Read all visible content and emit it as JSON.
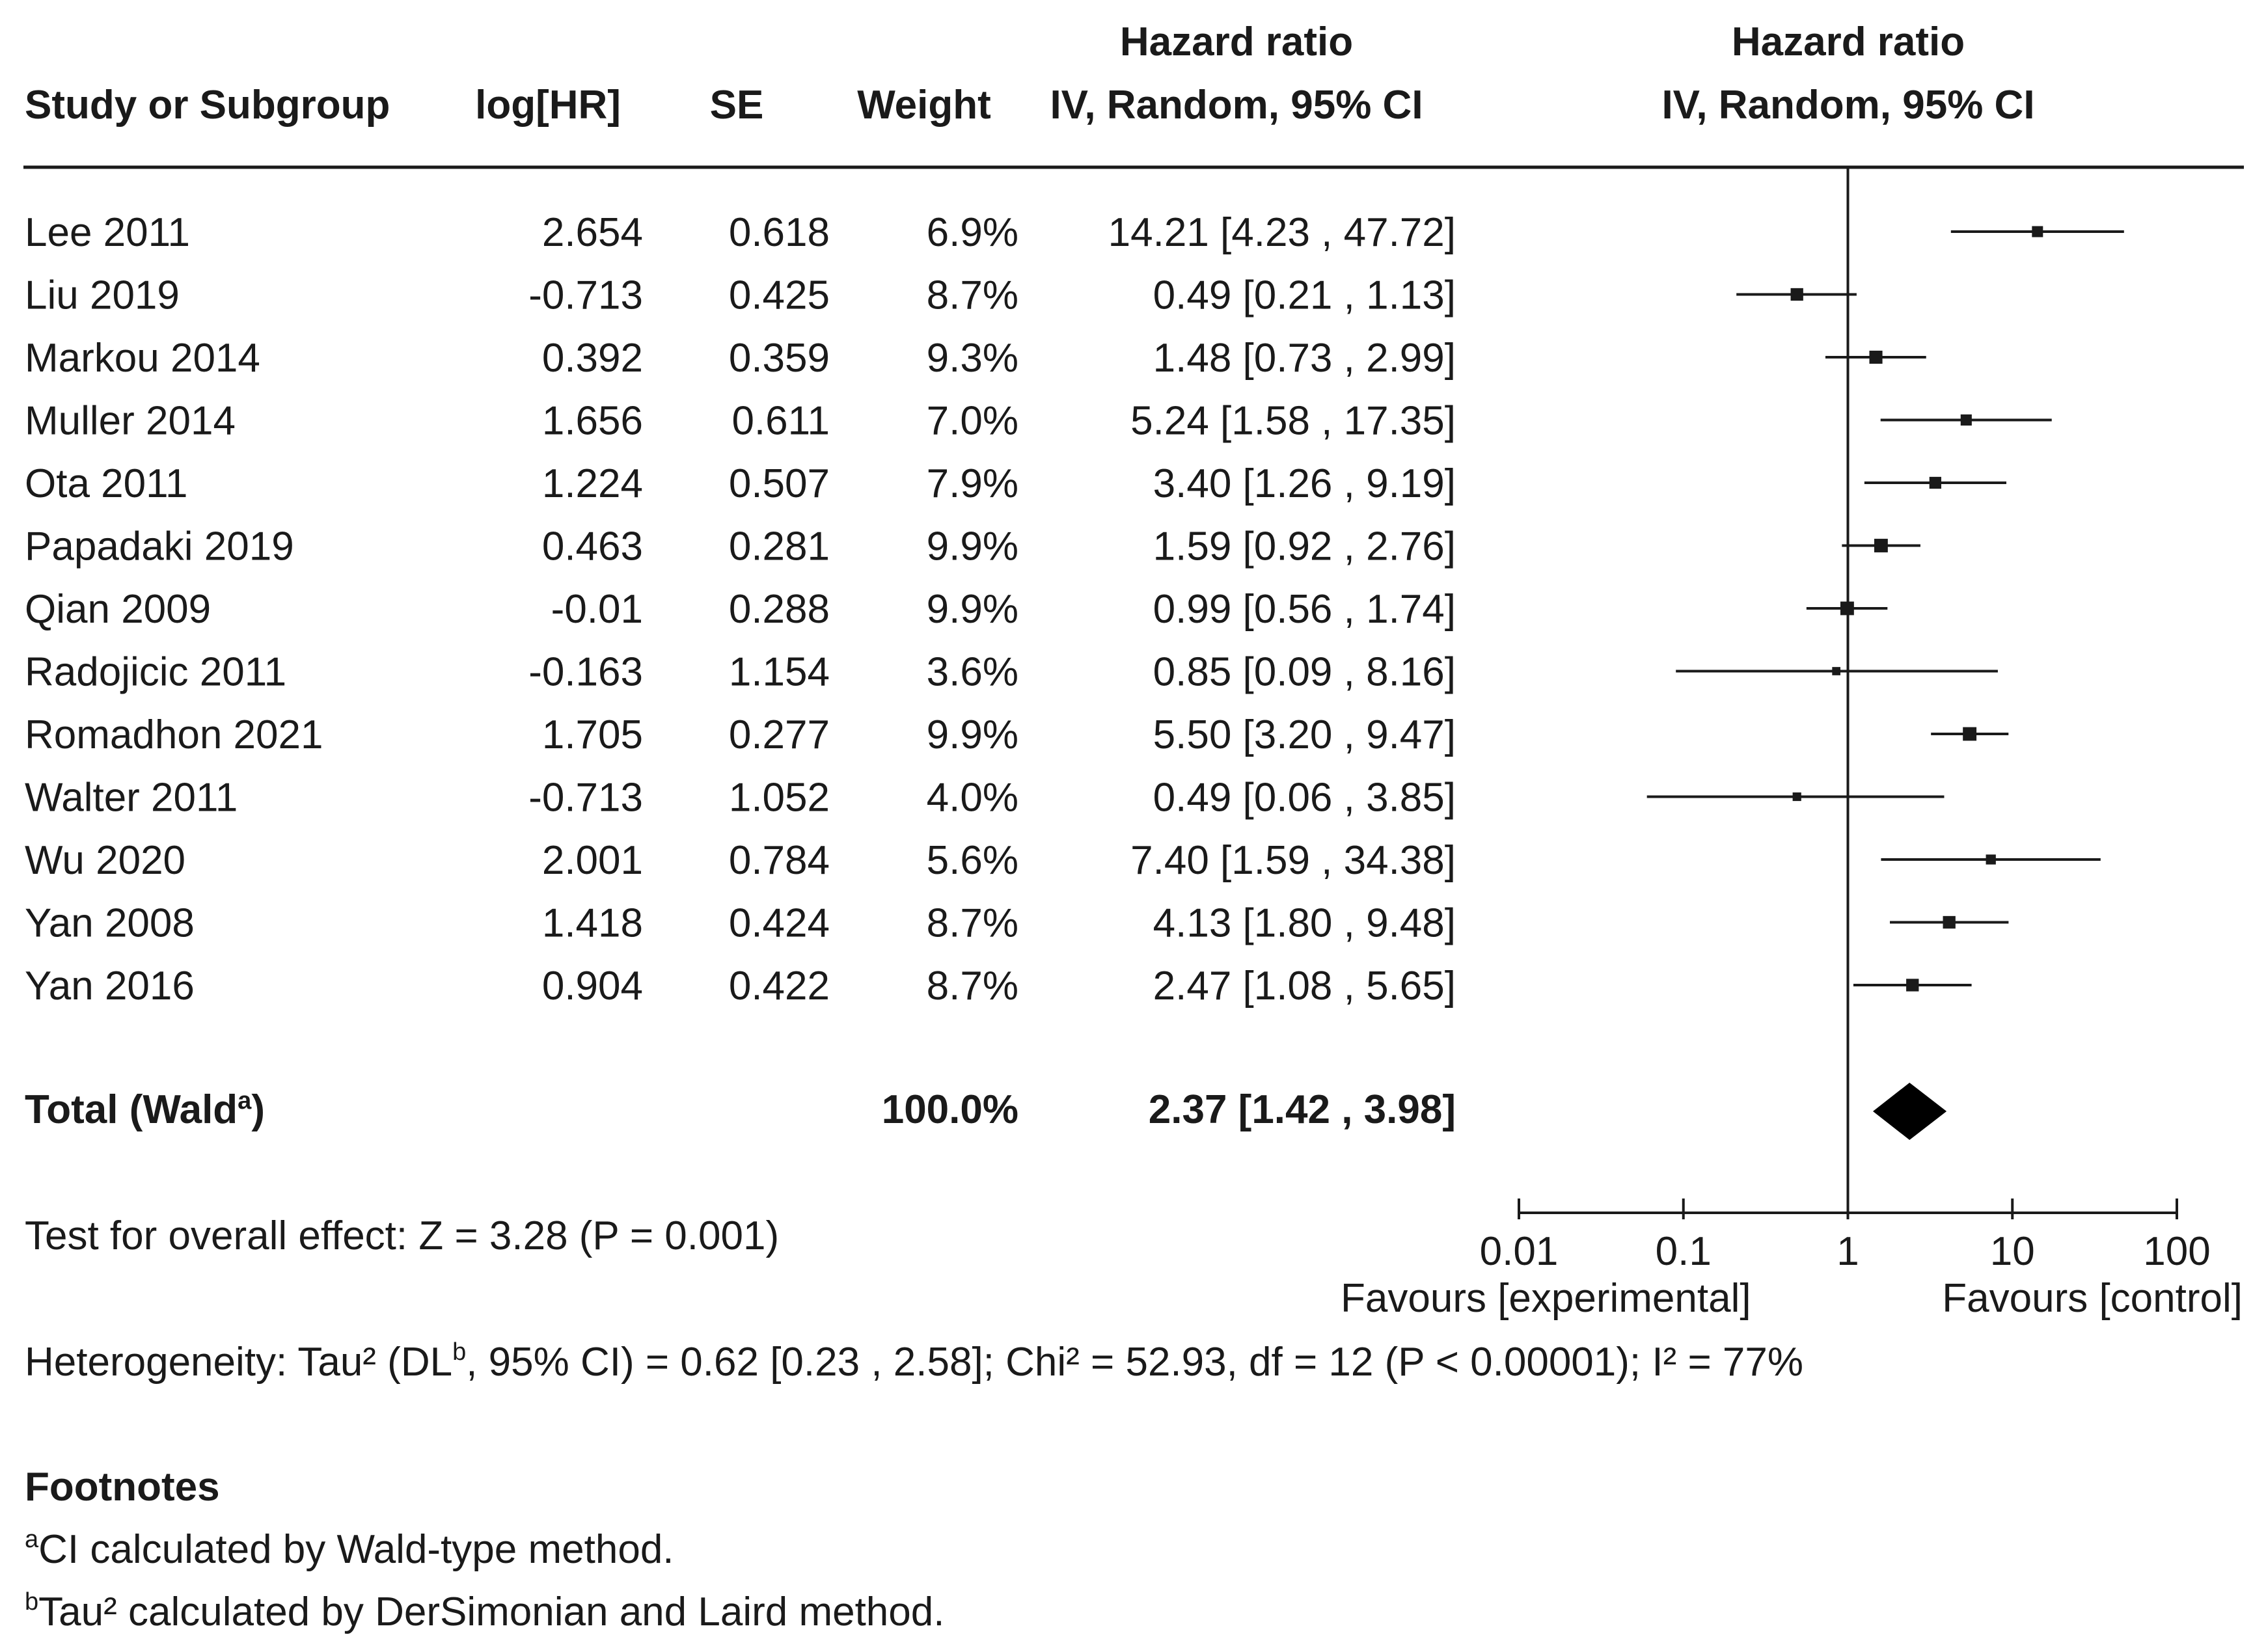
{
  "chart_data": {
    "type": "forest",
    "headers": {
      "study": "Study or Subgroup",
      "loghr": "log[HR]",
      "se": "SE",
      "weight": "Weight",
      "hr_table_line1": "Hazard ratio",
      "hr_table_line2": "IV, Random, 95% CI",
      "hr_plot_line1": "Hazard ratio",
      "hr_plot_line2": "IV, Random, 95% CI"
    },
    "studies": [
      {
        "name": "Lee 2011",
        "loghr": "2.654",
        "se": "0.618",
        "weight": "6.9%",
        "ci_text": "14.21 [4.23 , 47.72]",
        "hr": 14.21,
        "lo": 4.23,
        "hi": 47.72,
        "w": 6.9
      },
      {
        "name": "Liu 2019",
        "loghr": "-0.713",
        "se": "0.425",
        "weight": "8.7%",
        "ci_text": "0.49 [0.21 , 1.13]",
        "hr": 0.49,
        "lo": 0.21,
        "hi": 1.13,
        "w": 8.7
      },
      {
        "name": "Markou 2014",
        "loghr": "0.392",
        "se": "0.359",
        "weight": "9.3%",
        "ci_text": "1.48 [0.73 , 2.99]",
        "hr": 1.48,
        "lo": 0.73,
        "hi": 2.99,
        "w": 9.3
      },
      {
        "name": "Muller 2014",
        "loghr": "1.656",
        "se": "0.611",
        "weight": "7.0%",
        "ci_text": "5.24 [1.58 , 17.35]",
        "hr": 5.24,
        "lo": 1.58,
        "hi": 17.35,
        "w": 7.0
      },
      {
        "name": "Ota 2011",
        "loghr": "1.224",
        "se": "0.507",
        "weight": "7.9%",
        "ci_text": "3.40 [1.26 , 9.19]",
        "hr": 3.4,
        "lo": 1.26,
        "hi": 9.19,
        "w": 7.9
      },
      {
        "name": "Papadaki 2019",
        "loghr": "0.463",
        "se": "0.281",
        "weight": "9.9%",
        "ci_text": "1.59 [0.92 , 2.76]",
        "hr": 1.59,
        "lo": 0.92,
        "hi": 2.76,
        "w": 9.9
      },
      {
        "name": "Qian 2009",
        "loghr": "-0.01",
        "se": "0.288",
        "weight": "9.9%",
        "ci_text": "0.99 [0.56 , 1.74]",
        "hr": 0.99,
        "lo": 0.56,
        "hi": 1.74,
        "w": 9.9
      },
      {
        "name": "Radojicic 2011",
        "loghr": "-0.163",
        "se": "1.154",
        "weight": "3.6%",
        "ci_text": "0.85 [0.09 , 8.16]",
        "hr": 0.85,
        "lo": 0.09,
        "hi": 8.16,
        "w": 3.6
      },
      {
        "name": "Romadhon 2021",
        "loghr": "1.705",
        "se": "0.277",
        "weight": "9.9%",
        "ci_text": "5.50 [3.20 , 9.47]",
        "hr": 5.5,
        "lo": 3.2,
        "hi": 9.47,
        "w": 9.9
      },
      {
        "name": "Walter 2011",
        "loghr": "-0.713",
        "se": "1.052",
        "weight": "4.0%",
        "ci_text": "0.49 [0.06 , 3.85]",
        "hr": 0.49,
        "lo": 0.06,
        "hi": 3.85,
        "w": 4.0
      },
      {
        "name": "Wu 2020",
        "loghr": "2.001",
        "se": "0.784",
        "weight": "5.6%",
        "ci_text": "7.40 [1.59 , 34.38]",
        "hr": 7.4,
        "lo": 1.59,
        "hi": 34.38,
        "w": 5.6
      },
      {
        "name": "Yan 2008",
        "loghr": "1.418",
        "se": "0.424",
        "weight": "8.7%",
        "ci_text": "4.13 [1.80 , 9.48]",
        "hr": 4.13,
        "lo": 1.8,
        "hi": 9.48,
        "w": 8.7
      },
      {
        "name": "Yan 2016",
        "loghr": "0.904",
        "se": "0.422",
        "weight": "8.7%",
        "ci_text": "2.47 [1.08 , 5.65]",
        "hr": 2.47,
        "lo": 1.08,
        "hi": 5.65,
        "w": 8.7
      }
    ],
    "total": {
      "label": "Total (Wald",
      "label_sup": "a",
      "label_close": ")",
      "weight": "100.0%",
      "ci_text": "2.37 [1.42 , 3.98]",
      "hr": 2.37,
      "lo": 1.42,
      "hi": 3.98
    },
    "axis": {
      "scale": "log",
      "range": [
        0.01,
        100
      ],
      "ticks": [
        0.01,
        0.1,
        1,
        10,
        100
      ],
      "tick_labels": [
        "0.01",
        "0.1",
        "1",
        "10",
        "100"
      ],
      "reference": 1,
      "favours_left": "Favours [experimental]",
      "favours_right": "Favours [control]"
    },
    "overall_effect": "Test for overall effect: Z = 3.28 (P = 0.001)",
    "heterogeneity": {
      "pre": "Heterogeneity: Tau² (DL",
      "sup": "b",
      "post": ", 95% CI) = 0.62 [0.23 , 2.58]; Chi² = 52.93, df = 12 (P < 0.00001); I² = 77%"
    },
    "footnotes": {
      "title": "Footnotes",
      "items": [
        {
          "mark": "a",
          "text": "CI calculated by Wald-type method."
        },
        {
          "mark": "b",
          "text": "Tau² calculated by DerSimonian and Laird method."
        }
      ]
    }
  }
}
